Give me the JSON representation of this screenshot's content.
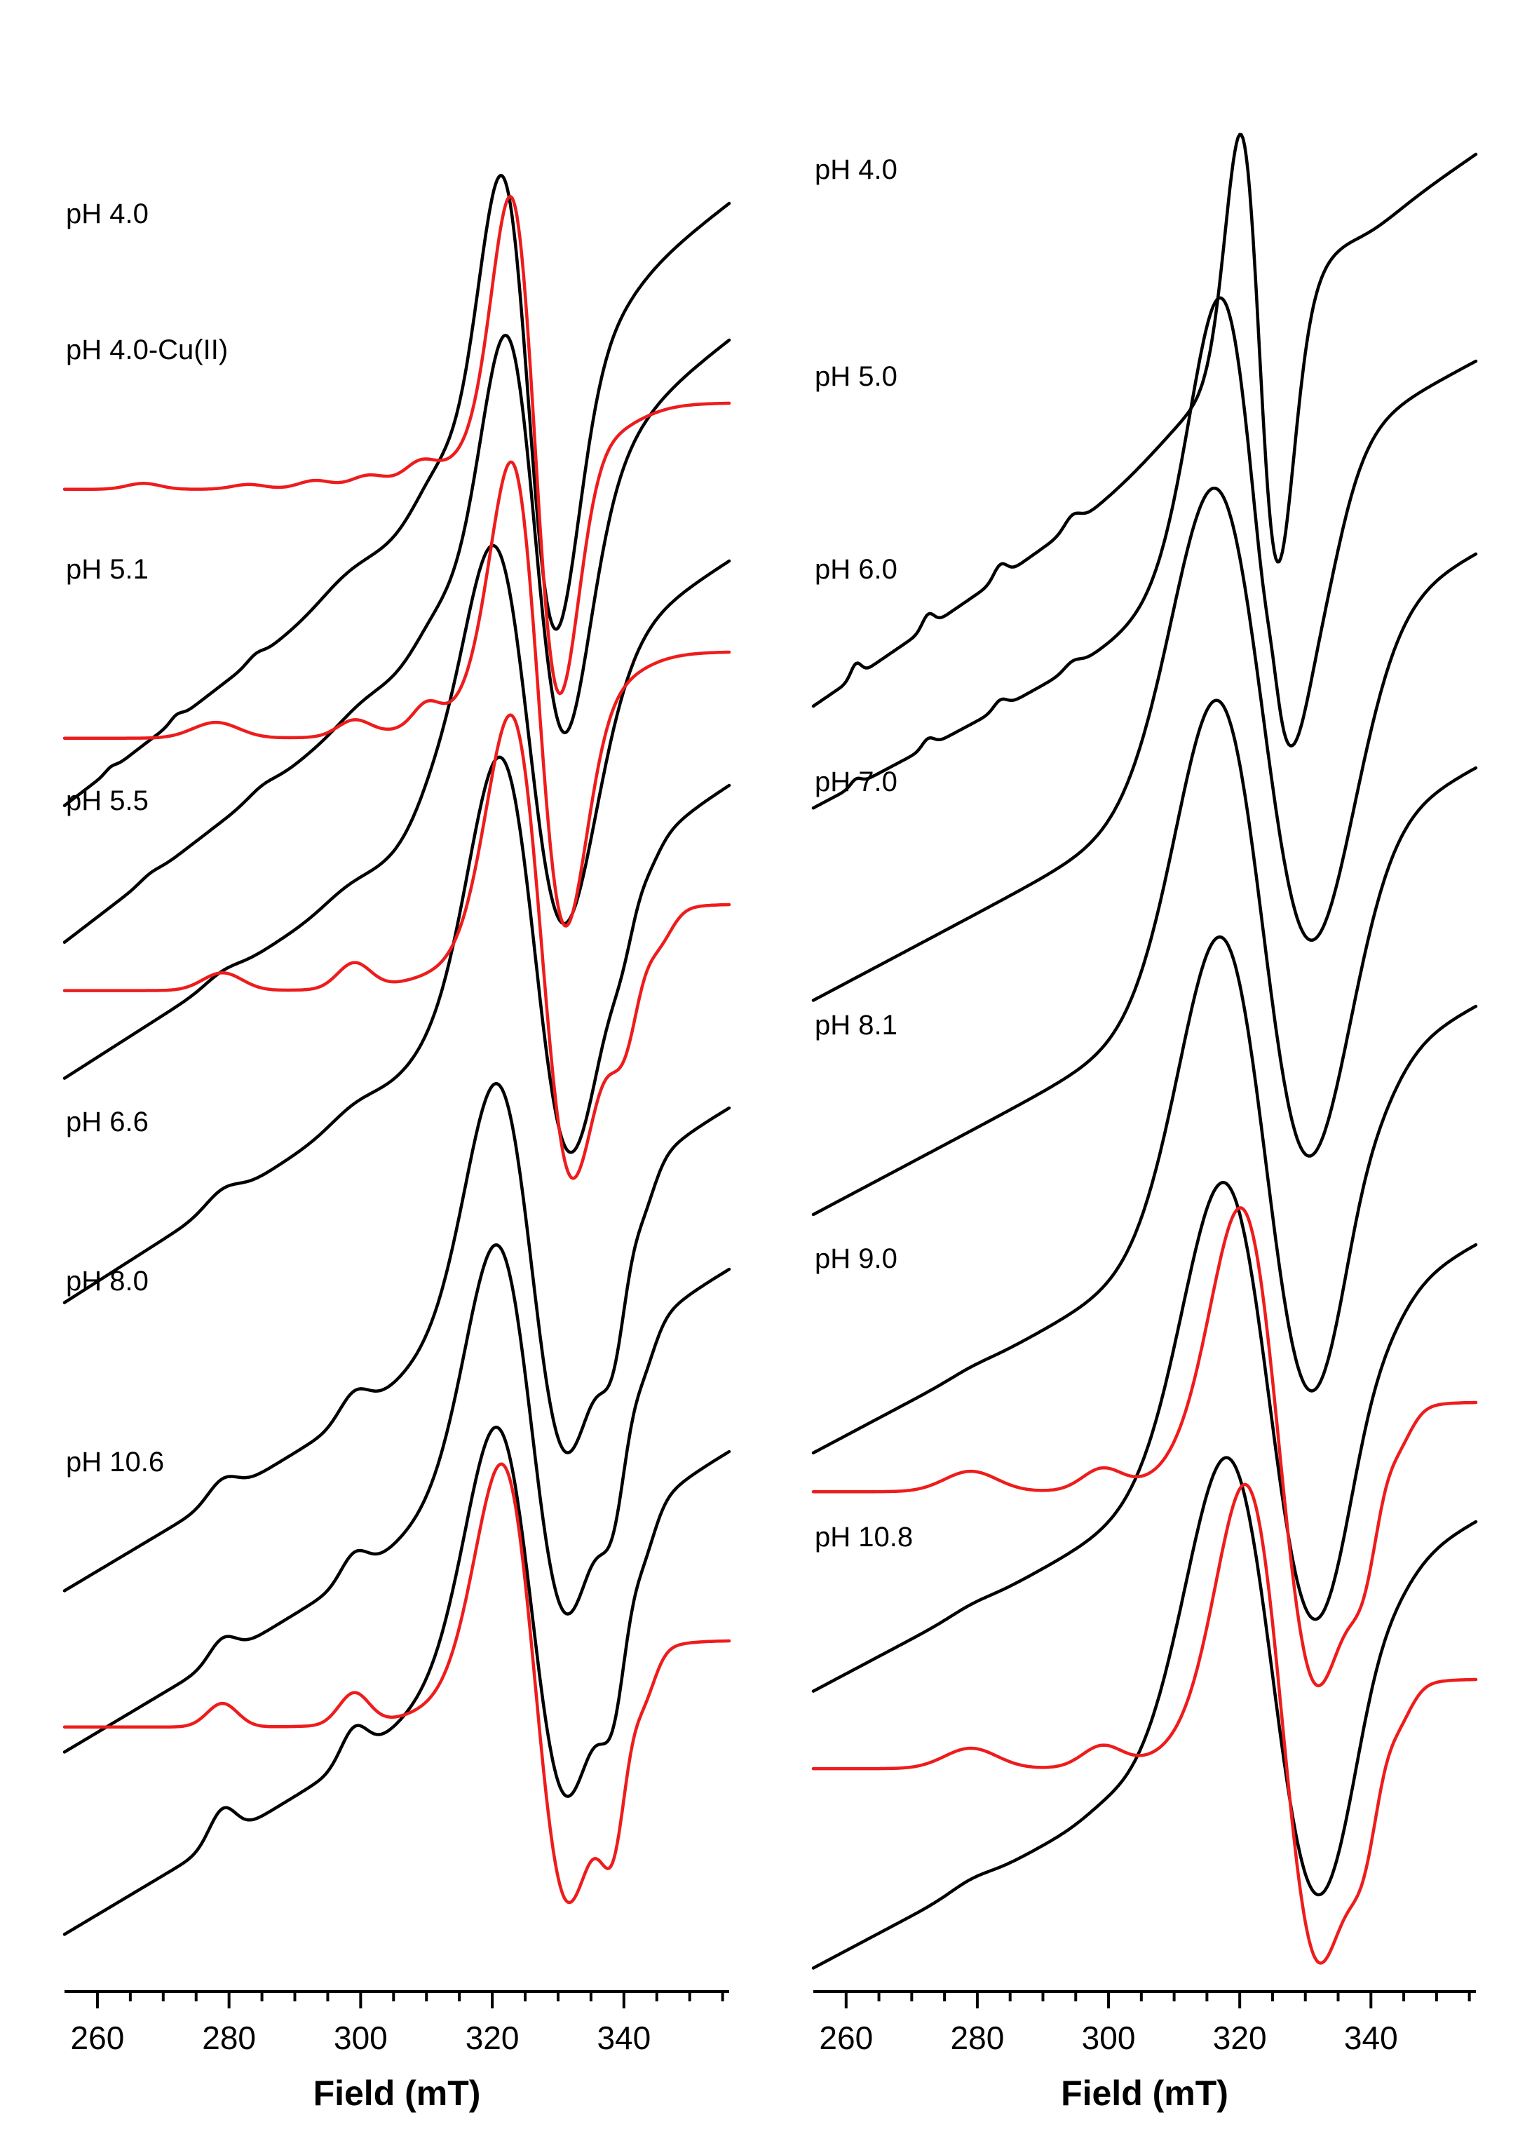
{
  "colors": {
    "experimental": "#000000",
    "simulated": "#ee1c1c"
  },
  "chart_data": [
    {
      "type": "line",
      "panel": "left",
      "xlabel": "Field (mT)",
      "ylabel": "",
      "xlim": [
        255,
        356
      ],
      "xticks": [
        260,
        280,
        300,
        320,
        340
      ],
      "grid": false,
      "traces": [
        {
          "label": "pH 4.0",
          "color": "black",
          "peaks": [
            [
              262,
              0.008,
              0.8
            ],
            [
              272,
              0.012,
              0.9
            ],
            [
              284,
              0.012,
              1.2
            ],
            [
              298,
              0.03,
              4
            ],
            [
              311,
              0.05,
              3
            ]
          ],
          "g_perp": 325.5,
          "w_perp": 4.4,
          "a_perp": 0.58,
          "tail": 0.012,
          "shoulders": [],
          "bumps": []
        },
        {
          "label": "pH 4.0-Cu(II)",
          "color": "black",
          "peaks": [
            [
              268,
              0.008,
              1.5
            ],
            [
              285,
              0.012,
              2
            ],
            [
              300,
              0.02,
              3.5
            ],
            [
              311,
              0.04,
              3
            ]
          ],
          "g_perp": 326.5,
          "w_perp": 4.8,
          "a_perp": 0.52,
          "tail": 0.012,
          "shoulders": [],
          "bumps": []
        },
        {
          "label": "",
          "color": "red",
          "peaks": [
            [
              267,
              0.015,
              2.5
            ],
            [
              283,
              0.012,
              2.5
            ],
            [
              293,
              0.02,
              2.5
            ],
            [
              301,
              0.025,
              2.5
            ],
            [
              309,
              0.035,
              2.2
            ]
          ],
          "g_perp": 326.5,
          "w_perp": 3.8,
          "a_perp": 0.62,
          "tail": 0,
          "shoulders": [],
          "bumps": []
        },
        {
          "label": "pH 5.1",
          "color": "black",
          "peaks": [
            [
              279,
              0.015,
              2.5
            ],
            [
              298,
              0.02,
              3.5
            ],
            [
              311,
              0.04,
              3
            ]
          ],
          "g_perp": 325.5,
          "w_perp": 5.8,
          "a_perp": 0.5,
          "tail": 0.01,
          "shoulders": [],
          "bumps": []
        },
        {
          "label": "",
          "color": "red",
          "peaks": [
            [
              278,
              0.04,
              3.5
            ],
            [
              299,
              0.04,
              2.5
            ],
            [
              310,
              0.05,
              2
            ]
          ],
          "g_perp": 327,
          "w_perp": 4.2,
          "a_perp": 0.58,
          "tail": 0,
          "shoulders": [],
          "bumps": []
        },
        {
          "label": "pH 5.5",
          "color": "black",
          "peaks": [
            [
              279,
              0.03,
              2.5
            ],
            [
              299,
              0.025,
              3.5
            ]
          ],
          "g_perp": 326.5,
          "w_perp": 5.8,
          "a_perp": 0.52,
          "tail": 0.01,
          "shoulders": [],
          "bumps": [
            [
              339,
              0.1,
              2
            ]
          ]
        },
        {
          "label": "",
          "color": "red",
          "peaks": [
            [
              279,
              0.045,
              3
            ],
            [
              299,
              0.065,
              2.5
            ]
          ],
          "g_perp": 327.5,
          "w_perp": 4.8,
          "a_perp": 0.58,
          "tail": 0,
          "shoulders": [],
          "bumps": [
            [
              339,
              0.33,
              2.5
            ]
          ]
        },
        {
          "label": "pH 6.6",
          "color": "black",
          "peaks": [
            [
              279,
              0.045,
              2.2
            ],
            [
              299,
              0.06,
              2.2
            ]
          ],
          "g_perp": 326,
          "w_perp": 5.8,
          "a_perp": 0.52,
          "tail": 0.01,
          "shoulders": [],
          "bumps": [
            [
              337.5,
              0.32,
              2.2
            ]
          ]
        },
        {
          "label": "pH 8.0",
          "color": "black",
          "peaks": [
            [
              279,
              0.05,
              2
            ],
            [
              299,
              0.06,
              2
            ]
          ],
          "g_perp": 326,
          "w_perp": 5.8,
          "a_perp": 0.52,
          "tail": 0.01,
          "shoulders": [],
          "bumps": [
            [
              337.5,
              0.32,
              2.2
            ]
          ]
        },
        {
          "label": "pH 10.6",
          "color": "black",
          "peaks": [
            [
              279,
              0.08,
              2
            ],
            [
              299,
              0.08,
              2
            ]
          ],
          "g_perp": 326,
          "w_perp": 5.8,
          "a_perp": 0.52,
          "tail": 0.01,
          "shoulders": [],
          "bumps": [
            [
              337.5,
              0.36,
              2.2
            ]
          ]
        },
        {
          "label": "",
          "color": "red",
          "peaks": [
            [
              279,
              0.06,
              2.3
            ],
            [
              299,
              0.08,
              2.3
            ]
          ],
          "g_perp": 326.5,
          "w_perp": 5.2,
          "a_perp": 0.55,
          "tail": 0,
          "shoulders": [],
          "bumps": [
            [
              337.5,
              0.45,
              2.2
            ]
          ]
        }
      ]
    },
    {
      "type": "line",
      "panel": "right",
      "xlabel": "Field (mT)",
      "ylabel": "",
      "xlim": [
        255,
        356
      ],
      "xticks": [
        260,
        280,
        300,
        320,
        340
      ],
      "grid": false,
      "traces": [
        {
          "label": "pH 4.0",
          "color": "black",
          "peaks": [
            [
              261.5,
              0.03,
              0.8
            ],
            [
              272.5,
              0.03,
              0.9
            ],
            [
              283.5,
              0.03,
              1
            ],
            [
              294.5,
              0.025,
              1.2
            ]
          ],
          "g_perp": 323,
          "w_perp": 3.0,
          "a_perp": 0.5,
          "tail": 0.01,
          "shoulders": [
            [
              334,
              0.07,
              4
            ]
          ],
          "bumps": []
        },
        {
          "label": "pH 5.0",
          "color": "black",
          "peaks": [
            [
              261.5,
              0.015,
              0.8
            ],
            [
              272.5,
              0.02,
              0.9
            ],
            [
              283.5,
              0.02,
              1
            ],
            [
              294.5,
              0.015,
              1.2
            ]
          ],
          "g_perp": 322.5,
          "w_perp": 5.8,
          "a_perp": 0.56,
          "tail": 0.008,
          "shoulders": [
            [
              325,
              0.05,
              1.0
            ],
            [
              331,
              0.04,
              2
            ]
          ],
          "bumps": []
        },
        {
          "label": "pH 6.0",
          "color": "black",
          "peaks": [],
          "g_perp": 323.5,
          "w_perp": 8.0,
          "a_perp": 0.58,
          "tail": 0.008,
          "shoulders": [],
          "bumps": []
        },
        {
          "label": "pH 7.0",
          "color": "black",
          "peaks": [],
          "g_perp": 323.5,
          "w_perp": 7.6,
          "a_perp": 0.58,
          "tail": 0.008,
          "shoulders": [],
          "bumps": []
        },
        {
          "label": "pH 8.1",
          "color": "black",
          "peaks": [
            [
              279,
              0.005,
              3
            ]
          ],
          "g_perp": 324,
          "w_perp": 7.6,
          "a_perp": 0.58,
          "tail": 0.008,
          "shoulders": [
            [
              338,
              0.06,
              3
            ]
          ],
          "bumps": []
        },
        {
          "label": "pH 9.0",
          "color": "black",
          "peaks": [
            [
              279,
              0.007,
              3
            ]
          ],
          "g_perp": 324.5,
          "w_perp": 7.6,
          "a_perp": 0.56,
          "tail": 0.008,
          "shoulders": [
            [
              339,
              0.05,
              3
            ]
          ],
          "bumps": []
        },
        {
          "label": "",
          "color": "red",
          "peaks": [
            [
              279,
              0.05,
              4
            ],
            [
              299,
              0.05,
              3
            ]
          ],
          "g_perp": 326,
          "w_perp": 6.0,
          "a_perp": 0.58,
          "tail": 0,
          "shoulders": [],
          "bumps": [
            [
              338,
              0.28,
              2.5
            ]
          ]
        },
        {
          "label": "pH 10.8",
          "color": "black",
          "peaks": [
            [
              279,
              0.012,
              3
            ],
            [
              299,
              0.01,
              3
            ]
          ],
          "g_perp": 325,
          "w_perp": 7.6,
          "a_perp": 0.56,
          "tail": 0.008,
          "shoulders": [
            [
              340,
              0.05,
              3
            ]
          ],
          "bumps": []
        },
        {
          "label": "",
          "color": "red",
          "peaks": [
            [
              279,
              0.05,
              4
            ],
            [
              299,
              0.05,
              3
            ]
          ],
          "g_perp": 326.5,
          "w_perp": 5.8,
          "a_perp": 0.58,
          "tail": 0,
          "shoulders": [],
          "bumps": [
            [
              338,
              0.28,
              2.5
            ]
          ]
        }
      ]
    }
  ]
}
